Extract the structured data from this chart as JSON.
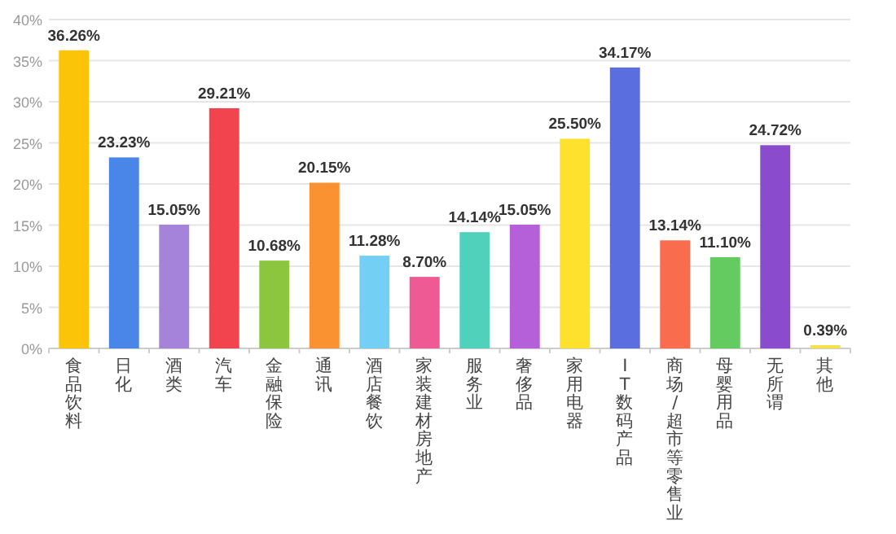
{
  "chart_data": {
    "type": "bar",
    "categories": [
      "食品饮料",
      "日化",
      "酒类",
      "汽车",
      "金融保险",
      "通讯",
      "酒店餐饮",
      "家装建材房地产",
      "服务业",
      "奢侈品",
      "家用电器",
      "IT数码产品",
      "商场/超市等零售业",
      "母婴用品",
      "无所谓",
      "其他"
    ],
    "values": [
      36.26,
      23.23,
      15.05,
      29.21,
      10.68,
      20.15,
      11.28,
      8.7,
      14.14,
      15.05,
      25.5,
      34.17,
      13.14,
      11.1,
      24.72,
      0.39
    ],
    "value_labels": [
      "36.26%",
      "23.23%",
      "15.05%",
      "29.21%",
      "10.68%",
      "20.15%",
      "11.28%",
      "8.70%",
      "14.14%",
      "15.05%",
      "25.50%",
      "34.17%",
      "13.14%",
      "11.10%",
      "24.72%",
      "0.39%"
    ],
    "colors": [
      "#fcc409",
      "#4a86e8",
      "#a583d9",
      "#f2444f",
      "#8cc63f",
      "#fb9231",
      "#73d0f4",
      "#ee5a94",
      "#4fd1bb",
      "#b55fd9",
      "#fde12d",
      "#5b6ee0",
      "#fa6c4e",
      "#63cb5f",
      "#8a4ccc",
      "#f3e04a"
    ],
    "ylim": [
      0,
      40
    ],
    "yticks": [
      {
        "value": 0,
        "label": "0%"
      },
      {
        "value": 5,
        "label": "5%"
      },
      {
        "value": 10,
        "label": "10%"
      },
      {
        "value": 15,
        "label": "15%"
      },
      {
        "value": 20,
        "label": "20%"
      },
      {
        "value": 25,
        "label": "25%"
      },
      {
        "value": 30,
        "label": "30%"
      },
      {
        "value": 35,
        "label": "35%"
      },
      {
        "value": 40,
        "label": "40%"
      }
    ],
    "grid": "y"
  }
}
